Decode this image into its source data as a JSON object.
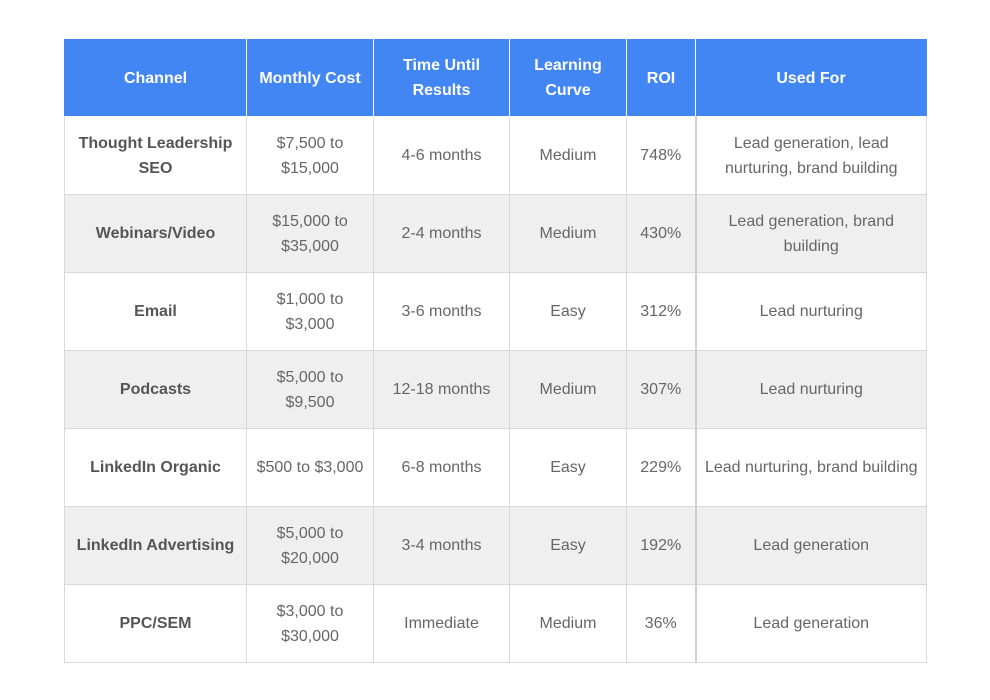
{
  "table": {
    "headers": {
      "channel": "Channel",
      "monthly_cost": "Monthly Cost",
      "time_until_results": "Time Until Results",
      "learning_curve": "Learning Curve",
      "roi": "ROI",
      "used_for": "Used For"
    },
    "rows": [
      {
        "channel": "Thought Leadership SEO",
        "monthly_cost": "$7,500 to $15,000",
        "time": "4-6 months",
        "learning_curve": "Medium",
        "roi": "748%",
        "used_for": "Lead generation, lead nurturing, brand building"
      },
      {
        "channel": "Webinars/Video",
        "monthly_cost": "$15,000 to $35,000",
        "time": "2-4 months",
        "learning_curve": "Medium",
        "roi": "430%",
        "used_for": "Lead generation, brand building"
      },
      {
        "channel": "Email",
        "monthly_cost": "$1,000 to $3,000",
        "time": "3-6 months",
        "learning_curve": "Easy",
        "roi": "312%",
        "used_for": "Lead nurturing"
      },
      {
        "channel": "Podcasts",
        "monthly_cost": "$5,000 to $9,500",
        "time": "12-18 months",
        "learning_curve": "Medium",
        "roi": "307%",
        "used_for": "Lead nurturing"
      },
      {
        "channel": "LinkedIn Organic",
        "monthly_cost": "$500 to $3,000",
        "time": "6-8 months",
        "learning_curve": "Easy",
        "roi": "229%",
        "used_for": "Lead nurturing, brand building"
      },
      {
        "channel": "LinkedIn Advertising",
        "monthly_cost": "$5,000 to $20,000",
        "time": "3-4 months",
        "learning_curve": "Easy",
        "roi": "192%",
        "used_for": "Lead generation"
      },
      {
        "channel": "PPC/SEM",
        "monthly_cost": "$3,000 to $30,000",
        "time": "Immediate",
        "learning_curve": "Medium",
        "roi": "36%",
        "used_for": "Lead generation"
      }
    ]
  },
  "colors": {
    "header_bg": "#4286f4",
    "header_text": "#ffffff",
    "row_alt_bg": "#efefef",
    "body_text": "#666666"
  }
}
